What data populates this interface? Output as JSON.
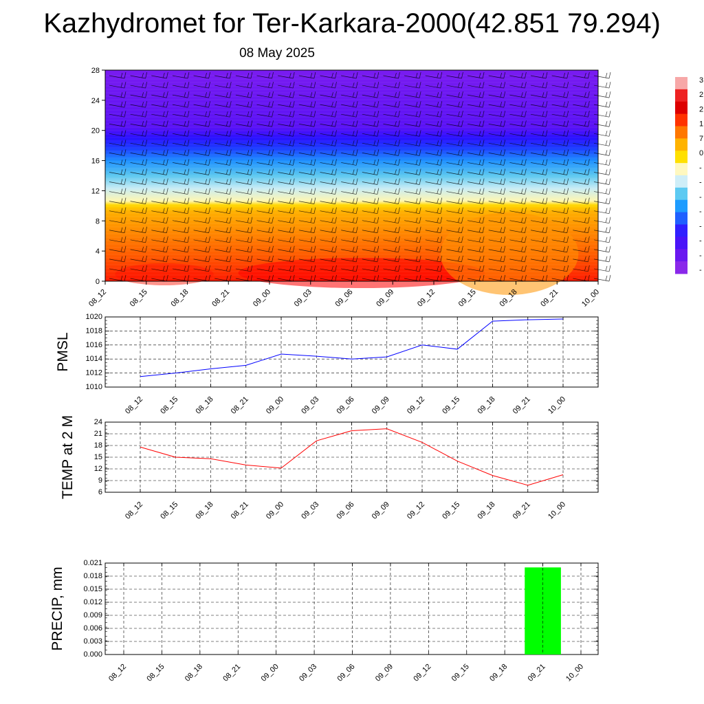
{
  "header": {
    "title": "Kazhydromet for Ter-Karkara-2000(42.851 79.294)",
    "date": "08 May 2025"
  },
  "chart_data": [
    {
      "type": "heatmap",
      "name": "vertical-cross-section",
      "x_ticks": [
        "08_12",
        "08_15",
        "08_18",
        "08_21",
        "09_00",
        "09_03",
        "09_06",
        "09_09",
        "09_12",
        "09_15",
        "09_18",
        "09_21",
        "10_00"
      ],
      "y_ticks": [
        "0",
        "4",
        "8",
        "12",
        "16",
        "20",
        "24",
        "28"
      ],
      "ylim": [
        0,
        28
      ],
      "color_scale": [
        "#ff1a00",
        "#ff5a00",
        "#ff8c00",
        "#ffb000",
        "#ffd700",
        "#fff7b0",
        "#c8ecf5",
        "#5cc8f0",
        "#1e90ff",
        "#1c3cff",
        "#2a10ff",
        "#5a12f5",
        "#7a1cf0"
      ],
      "wind_barbs": true,
      "colorbar_labels_visible": [
        "3",
        "2",
        "2",
        "1",
        "7",
        "0",
        "-",
        "-",
        "-",
        "-",
        "-",
        "-",
        "-",
        "-"
      ],
      "colorbar_colors": [
        "#f7a8a8",
        "#ee2222",
        "#dd0000",
        "#ff3300",
        "#ff7700",
        "#ffb300",
        "#ffe000",
        "#fff8c0",
        "#cfeef8",
        "#5dcaf2",
        "#1e9cff",
        "#2060ff",
        "#3020ff",
        "#4a14f8",
        "#6a18f0",
        "#8a28ea"
      ]
    },
    {
      "type": "line",
      "name": "pmsl",
      "ylabel": "PMSL",
      "categories": [
        "08_12",
        "08_15",
        "08_18",
        "08_21",
        "09_00",
        "09_03",
        "09_06",
        "09_09",
        "09_12",
        "09_15",
        "09_18",
        "09_21",
        "10_00"
      ],
      "values": [
        1011.5,
        1012.0,
        1012.6,
        1013.1,
        1014.7,
        1014.4,
        1014.0,
        1014.3,
        1016.0,
        1015.4,
        1019.4,
        1019.6,
        1019.7
      ],
      "ylim": [
        1010,
        1020
      ],
      "y_ticks": [
        "1010",
        "1012",
        "1014",
        "1016",
        "1018",
        "1020"
      ],
      "color": "#0000ff",
      "grid": true
    },
    {
      "type": "line",
      "name": "temp-2m",
      "ylabel": "TEMP at 2 M",
      "categories": [
        "08_12",
        "08_15",
        "08_18",
        "08_21",
        "09_00",
        "09_03",
        "09_06",
        "09_09",
        "09_12",
        "09_15",
        "09_18",
        "09_21",
        "10_00"
      ],
      "values": [
        17.6,
        15.0,
        14.6,
        13.0,
        12.2,
        19.2,
        21.8,
        22.3,
        18.8,
        14.0,
        10.3,
        7.8,
        10.5
      ],
      "ylim": [
        6,
        24
      ],
      "y_ticks": [
        "6",
        "9",
        "12",
        "15",
        "18",
        "21",
        "24"
      ],
      "color": "#ff0000",
      "grid": true
    },
    {
      "type": "bar",
      "name": "precip",
      "ylabel": "PRECIP, mm",
      "categories": [
        "08_12",
        "08_15",
        "08_18",
        "08_21",
        "09_00",
        "09_03",
        "09_06",
        "09_09",
        "09_12",
        "09_15",
        "09_18",
        "09_21",
        "10_00"
      ],
      "values": [
        0,
        0,
        0,
        0,
        0,
        0,
        0,
        0,
        0,
        0,
        0,
        0.02,
        0
      ],
      "ylim": [
        0,
        0.021
      ],
      "y_ticks": [
        "0.000",
        "0.003",
        "0.006",
        "0.009",
        "0.012",
        "0.015",
        "0.018",
        "0.021"
      ],
      "color": "#00ff00",
      "grid": true
    }
  ]
}
